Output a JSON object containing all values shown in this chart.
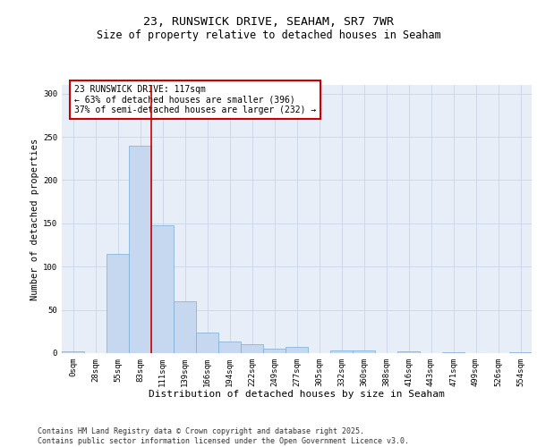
{
  "title1": "23, RUNSWICK DRIVE, SEAHAM, SR7 7WR",
  "title2": "Size of property relative to detached houses in Seaham",
  "xlabel": "Distribution of detached houses by size in Seaham",
  "ylabel": "Number of detached properties",
  "bin_labels": [
    "0sqm",
    "28sqm",
    "55sqm",
    "83sqm",
    "111sqm",
    "139sqm",
    "166sqm",
    "194sqm",
    "222sqm",
    "249sqm",
    "277sqm",
    "305sqm",
    "332sqm",
    "360sqm",
    "388sqm",
    "416sqm",
    "443sqm",
    "471sqm",
    "499sqm",
    "526sqm",
    "554sqm"
  ],
  "bar_values": [
    2,
    0,
    115,
    240,
    148,
    60,
    24,
    13,
    10,
    5,
    7,
    0,
    3,
    3,
    0,
    2,
    0,
    1,
    0,
    0,
    1
  ],
  "bar_color": "#c5d8ef",
  "bar_edge_color": "#7aacd4",
  "vline_color": "#cc0000",
  "annotation_text": "23 RUNSWICK DRIVE: 117sqm\n← 63% of detached houses are smaller (396)\n37% of semi-detached houses are larger (232) →",
  "annotation_box_color": "#cc0000",
  "ylim": [
    0,
    310
  ],
  "yticks": [
    0,
    50,
    100,
    150,
    200,
    250,
    300
  ],
  "background_color": "#e8eef8",
  "footer_text": "Contains HM Land Registry data © Crown copyright and database right 2025.\nContains public sector information licensed under the Open Government Licence v3.0.",
  "title1_fontsize": 9.5,
  "title2_fontsize": 8.5,
  "xlabel_fontsize": 8,
  "ylabel_fontsize": 7.5,
  "tick_fontsize": 6.5,
  "annotation_fontsize": 7,
  "footer_fontsize": 6
}
